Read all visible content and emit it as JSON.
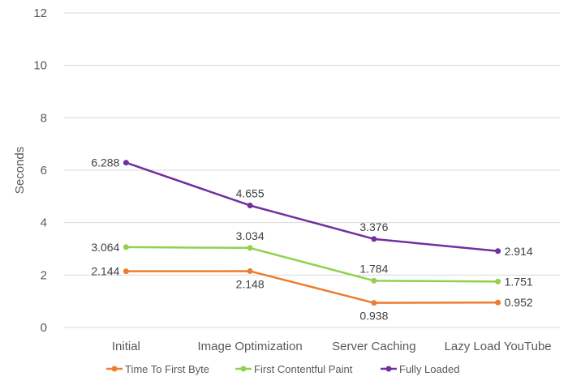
{
  "chart_data": {
    "type": "line",
    "title": "",
    "xlabel": "",
    "ylabel": "Seconds",
    "ylim": [
      0,
      12
    ],
    "yticks": [
      0,
      2,
      4,
      6,
      8,
      10,
      12
    ],
    "grid": true,
    "legend_position": "bottom",
    "categories": [
      "Initial",
      "Image Optimization",
      "Server Caching",
      "Lazy Load YouTube"
    ],
    "series": [
      {
        "name": "Time To First Byte",
        "color": "#ed7d31",
        "values": [
          2.144,
          2.148,
          0.938,
          0.952
        ],
        "labels": [
          "2.144",
          "2.148",
          "0.938",
          "0.952"
        ]
      },
      {
        "name": "First Contentful Paint",
        "color": "#92d050",
        "values": [
          3.064,
          3.034,
          1.784,
          1.751
        ],
        "labels": [
          "3.064",
          "3.034",
          "1.784",
          "1.751"
        ]
      },
      {
        "name": "Fully Loaded",
        "color": "#7030a0",
        "values": [
          6.288,
          4.655,
          3.376,
          2.914
        ],
        "labels": [
          "6.288",
          "4.655",
          "3.376",
          "2.914"
        ]
      }
    ]
  }
}
